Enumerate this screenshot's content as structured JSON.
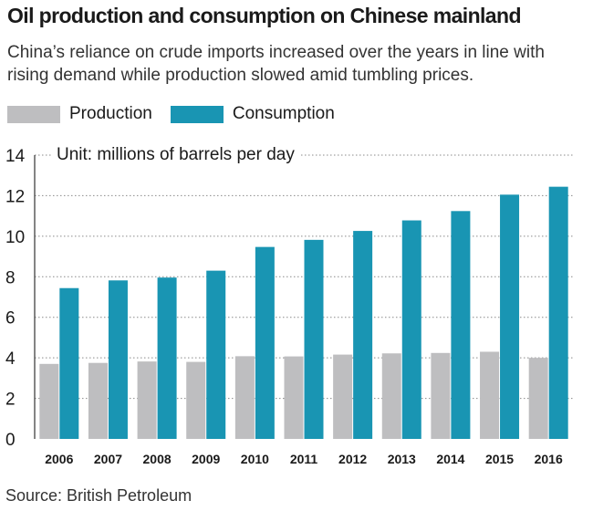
{
  "colors": {
    "production": "#bebec0",
    "consumption": "#1995b3",
    "grid": "#8a8a8a",
    "text": "#1a1a1a"
  },
  "chart_data": {
    "type": "bar",
    "title": "Oil production and consumption on Chinese mainland",
    "subtitle": "China’s reliance on crude imports increased over the years in line with rising demand while production slowed amid tumbling prices.",
    "unit_label": "Unit: millions of barrels per day",
    "categories": [
      "2006",
      "2007",
      "2008",
      "2009",
      "2010",
      "2011",
      "2012",
      "2013",
      "2014",
      "2015",
      "2016"
    ],
    "series": [
      {
        "name": "Production",
        "values": [
          3.7,
          3.75,
          3.82,
          3.8,
          4.08,
          4.07,
          4.16,
          4.22,
          4.24,
          4.3,
          4.0
        ]
      },
      {
        "name": "Consumption",
        "values": [
          7.44,
          7.82,
          7.96,
          8.3,
          9.47,
          9.82,
          10.26,
          10.78,
          11.24,
          12.05,
          12.44
        ]
      }
    ],
    "ylim": [
      0,
      14
    ],
    "yticks": [
      "0",
      "2",
      "4",
      "6",
      "8",
      "10",
      "12",
      "14"
    ],
    "grid": true,
    "legend": "top-left",
    "source": "Source: British Petroleum"
  }
}
